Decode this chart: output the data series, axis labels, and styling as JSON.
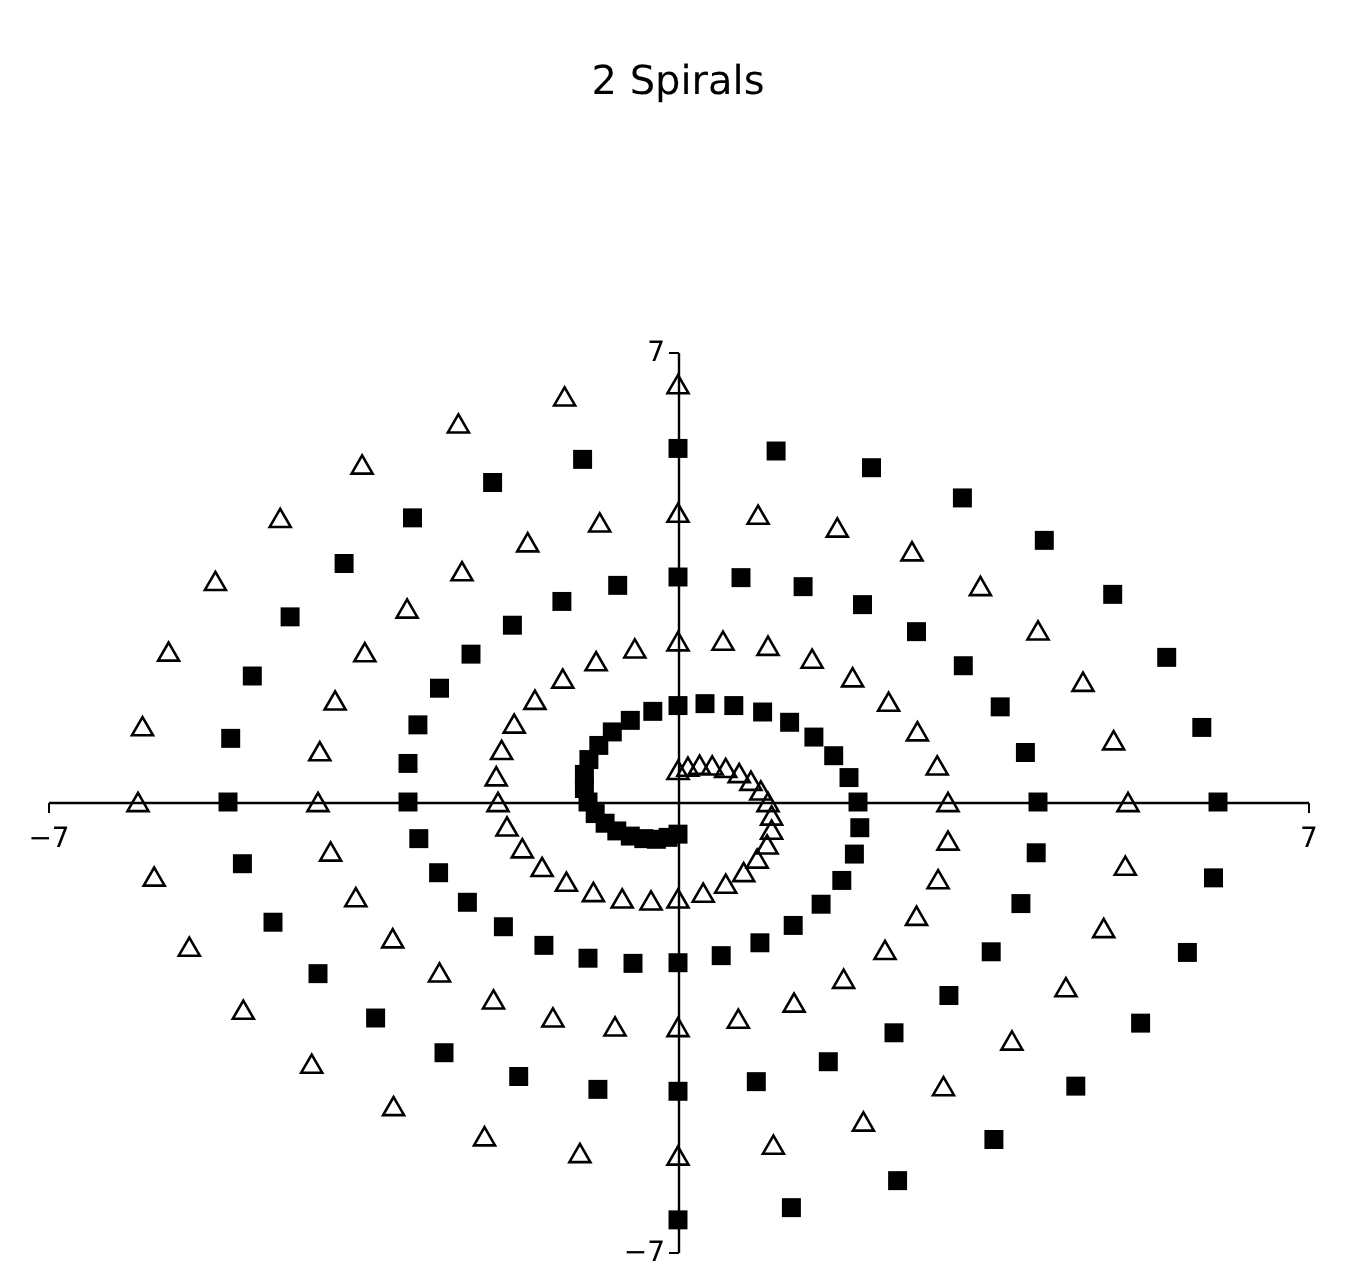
{
  "chart_data": {
    "type": "scatter",
    "title": "2 Spirals",
    "xlim": [
      -7,
      7
    ],
    "xticks": [
      -7,
      7
    ],
    "ylim": [
      -7,
      7
    ],
    "yticks": [
      -7,
      7
    ],
    "grid": false,
    "legend": false,
    "series": [
      {
        "color": "#000000",
        "marker": "triangle",
        "x": [
          0,
          -1.26,
          -2.44,
          -3.51,
          -4.42,
          -5.14,
          -5.66,
          -5.95,
          -6,
          -5.82,
          -5.43,
          -4.83,
          -4.07,
          -3.16,
          -2.15,
          -1.09,
          0,
          1.06,
          2.06,
          2.95,
          3.71,
          4.31,
          4.73,
          4.97,
          5,
          4.84,
          4.5,
          4,
          3.36,
          2.6,
          1.77,
          0.89,
          0,
          -0.87,
          -1.67,
          -2.4,
          -3.01,
          -3.48,
          -3.81,
          -3.98,
          -4,
          -3.86,
          -3.58,
          -3.17,
          -2.65,
          -2.05,
          -1.39,
          -0.7,
          0,
          0.67,
          1.29,
          1.84,
          2.3,
          2.65,
          2.89,
          3,
          3,
          2.88,
          2.66,
          2.34,
          1.94,
          1.49,
          1,
          0.5,
          0,
          -0.48,
          -0.91,
          -1.28,
          -1.59,
          -1.82,
          -1.96,
          -2.02,
          -2,
          -1.9,
          -1.73,
          -1.51,
          -1.24,
          -0.94,
          -0.62,
          -0.3,
          0,
          0.28,
          0.53,
          0.73,
          0.88,
          0.99,
          1.04,
          1.04,
          1,
          0.92,
          0.81,
          0.68,
          0.53,
          0.38,
          0.24,
          0.11,
          0
        ],
        "values": [
          6.5,
          6.31,
          5.89,
          5.25,
          4.42,
          3.44,
          2.34,
          1.18,
          0,
          -1.16,
          -2.25,
          -3.23,
          -4.07,
          -4.73,
          -5.2,
          -5.46,
          -5.5,
          -5.33,
          -4.97,
          -4.42,
          -3.71,
          -2.88,
          -1.96,
          -0.99,
          0,
          0.96,
          1.87,
          2.67,
          3.36,
          3.9,
          4.27,
          4.47,
          4.5,
          4.35,
          4.04,
          3.59,
          3.01,
          2.33,
          1.58,
          0.79,
          0,
          -0.77,
          -1.48,
          -2.12,
          -2.65,
          -3.07,
          -3.35,
          -3.49,
          -3.5,
          -3.37,
          -3.12,
          -2.75,
          -2.3,
          -1.77,
          -1.2,
          -0.6,
          0,
          0.57,
          1.1,
          1.56,
          1.94,
          2.23,
          2.43,
          2.51,
          2.5,
          2.39,
          2.19,
          1.92,
          1.59,
          1.22,
          0.81,
          0.4,
          0,
          -0.38,
          -0.72,
          -1.01,
          -1.24,
          -1.4,
          -1.5,
          -1.53,
          -1.5,
          -1.41,
          -1.27,
          -1.09,
          -0.88,
          -0.66,
          -0.43,
          -0.21,
          0,
          0.18,
          0.33,
          0.45,
          0.53,
          0.57,
          0.58,
          0.55,
          0.5
        ]
      },
      {
        "color": "#000000",
        "marker": "square",
        "x": [
          0,
          1.26,
          2.44,
          3.51,
          4.42,
          5.14,
          5.66,
          5.95,
          6,
          5.82,
          5.43,
          4.83,
          4.07,
          3.16,
          2.15,
          1.09,
          0,
          -1.06,
          -2.06,
          -2.95,
          -3.71,
          -4.31,
          -4.73,
          -4.97,
          -5,
          -4.84,
          -4.5,
          -4,
          -3.36,
          -2.6,
          -1.77,
          -0.89,
          0,
          0.87,
          1.67,
          2.4,
          3.01,
          3.48,
          3.81,
          3.98,
          4,
          3.86,
          3.58,
          3.17,
          2.65,
          2.05,
          1.39,
          0.7,
          0,
          -0.67,
          -1.29,
          -1.84,
          -2.3,
          -2.65,
          -2.89,
          -3,
          -3,
          -2.88,
          -2.66,
          -2.34,
          -1.94,
          -1.49,
          -1,
          -0.5,
          0,
          0.48,
          0.91,
          1.28,
          1.59,
          1.82,
          1.96,
          2.02,
          2,
          1.9,
          1.73,
          1.51,
          1.24,
          0.94,
          0.62,
          0.3,
          0,
          -0.28,
          -0.53,
          -0.73,
          -0.88,
          -0.99,
          -1.04,
          -1.04,
          -1,
          -0.92,
          -0.81,
          -0.68,
          -0.53,
          -0.38,
          -0.24,
          -0.11,
          0
        ],
        "values": [
          -6.5,
          -6.31,
          -5.89,
          -5.25,
          -4.42,
          -3.44,
          -2.34,
          -1.18,
          0,
          1.16,
          2.25,
          3.23,
          4.07,
          4.73,
          5.2,
          5.46,
          5.5,
          5.33,
          4.97,
          4.42,
          3.71,
          2.88,
          1.96,
          0.99,
          0,
          -0.96,
          -1.87,
          -2.67,
          -3.36,
          -3.9,
          -4.27,
          -4.47,
          -4.5,
          -4.35,
          -4.04,
          -3.59,
          -3.01,
          -2.33,
          -1.58,
          -0.79,
          0,
          0.77,
          1.48,
          2.12,
          2.65,
          3.07,
          3.35,
          3.49,
          3.5,
          3.37,
          3.12,
          2.75,
          2.3,
          1.77,
          1.2,
          0.6,
          0,
          -0.57,
          -1.1,
          -1.56,
          -1.94,
          -2.23,
          -2.43,
          -2.51,
          -2.5,
          -2.39,
          -2.19,
          -1.92,
          -1.59,
          -1.22,
          -0.81,
          -0.4,
          0,
          0.38,
          0.72,
          1.01,
          1.24,
          1.4,
          1.5,
          1.53,
          1.5,
          1.41,
          1.27,
          1.09,
          0.88,
          0.66,
          0.43,
          0.21,
          0,
          -0.18,
          -0.33,
          -0.45,
          -0.53,
          -0.57,
          -0.58,
          -0.55,
          -0.5
        ]
      }
    ]
  }
}
